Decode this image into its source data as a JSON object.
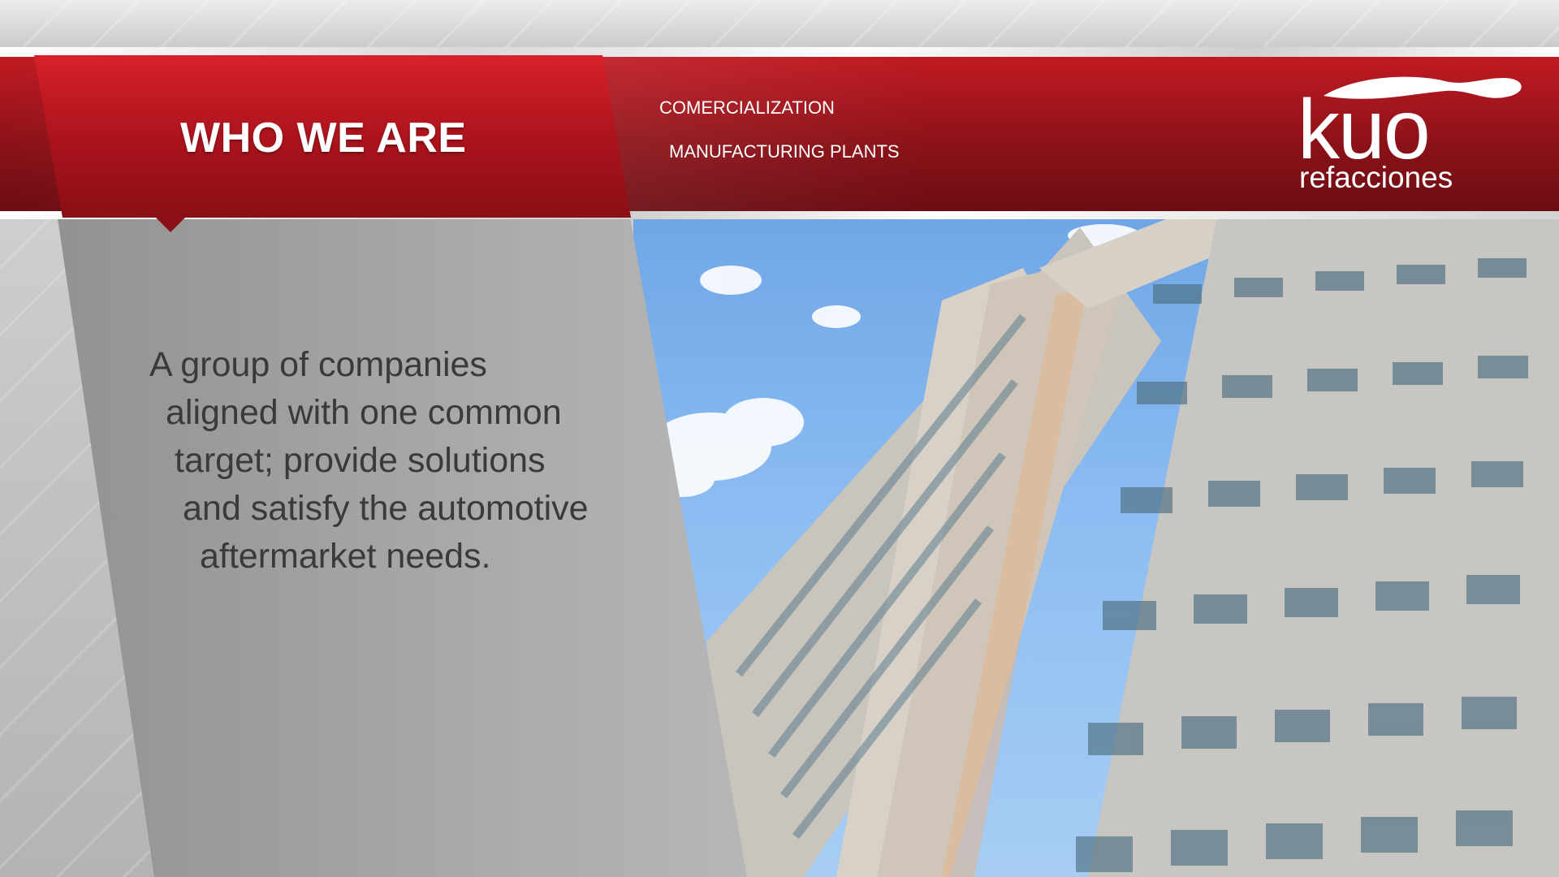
{
  "header": {
    "title": "WHO WE ARE",
    "nav": [
      {
        "label": "COMERCIALIZATION"
      },
      {
        "label": "MANUFACTURING PLANTS"
      }
    ]
  },
  "logo": {
    "main": "kuo",
    "sub": "refacciones"
  },
  "body": {
    "lines": [
      "A group of companies",
      "aligned with one common",
      "target; provide solutions",
      "and satisfy the automotive",
      "aftermarket needs."
    ]
  },
  "colors": {
    "brand_red": "#b3141d",
    "text_gray": "#3a3a3a"
  }
}
